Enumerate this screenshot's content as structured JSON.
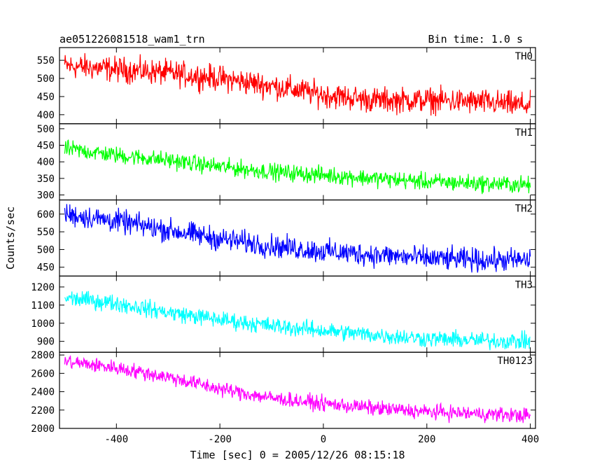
{
  "chart_data": {
    "type": "line",
    "title": "ae051226081518_wam1_trn",
    "subtitle": "Bin time: 1.0 s",
    "xlabel": "Time [sec] 0 = 2005/12/26 08:15:18",
    "ylabel": "Counts/sec",
    "xlim": [
      -510,
      410
    ],
    "xticks": [
      -400,
      -200,
      0,
      200,
      400
    ],
    "x_range_data": [
      -500,
      400
    ],
    "grid": false,
    "panels": [
      {
        "name": "TH0",
        "color": "#ff0000",
        "ylim": [
          375,
          585
        ],
        "yticks": [
          400,
          450,
          500,
          550
        ],
        "x": [
          -500,
          -400,
          -300,
          -200,
          -100,
          0,
          100,
          200,
          300,
          400
        ],
        "y": [
          535,
          525,
          515,
          500,
          480,
          455,
          440,
          440,
          435,
          425
        ],
        "noise": 30
      },
      {
        "name": "TH1",
        "color": "#00ff00",
        "ylim": [
          285,
          515
        ],
        "yticks": [
          300,
          350,
          400,
          450,
          500
        ],
        "x": [
          -500,
          -400,
          -300,
          -200,
          -100,
          0,
          100,
          200,
          300,
          400
        ],
        "y": [
          440,
          420,
          405,
          385,
          370,
          360,
          350,
          340,
          335,
          330
        ],
        "noise": 22
      },
      {
        "name": "TH2",
        "color": "#0000ff",
        "ylim": [
          425,
          640
        ],
        "yticks": [
          450,
          500,
          550,
          600
        ],
        "x": [
          -500,
          -400,
          -300,
          -200,
          -100,
          0,
          100,
          200,
          300,
          400
        ],
        "y": [
          600,
          580,
          555,
          530,
          510,
          495,
          485,
          475,
          470,
          470
        ],
        "noise": 28
      },
      {
        "name": "TH3",
        "color": "#00ffff",
        "ylim": [
          840,
          1260
        ],
        "yticks": [
          900,
          1000,
          1100,
          1200
        ],
        "x": [
          -500,
          -400,
          -300,
          -200,
          -100,
          0,
          100,
          200,
          300,
          400
        ],
        "y": [
          1140,
          1110,
          1060,
          1020,
          985,
          960,
          935,
          915,
          905,
          900
        ],
        "noise": 40
      },
      {
        "name": "TH0123",
        "color": "#ff00ff",
        "ylim": [
          2000,
          2830
        ],
        "yticks": [
          2000,
          2200,
          2400,
          2600,
          2800
        ],
        "x": [
          -500,
          -400,
          -300,
          -200,
          -100,
          0,
          100,
          200,
          300,
          400
        ],
        "y": [
          2730,
          2660,
          2560,
          2430,
          2330,
          2270,
          2220,
          2180,
          2160,
          2140
        ],
        "noise": 70
      }
    ]
  }
}
